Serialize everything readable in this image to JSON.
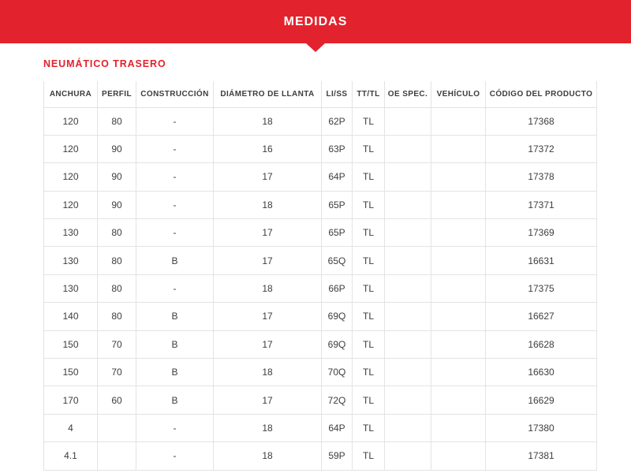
{
  "colors": {
    "accent_red": "#e2222c",
    "table_border": "#e3e3e3",
    "cell_text": "#3d3d3d"
  },
  "banner": {
    "title": "MEDIDAS"
  },
  "section": {
    "title": "NEUMÁTICO TRASERO"
  },
  "table": {
    "columns": [
      "ANCHURA",
      "PERFIL",
      "CONSTRUCCIÓN",
      "DIÁMETRO DE LLANTA",
      "LI/SS",
      "TT/TL",
      "OE SPEC.",
      "VEHÍCULO",
      "CÓDIGO DEL PRODUCTO"
    ],
    "rows": [
      [
        "120",
        "80",
        "-",
        "18",
        "62P",
        "TL",
        "",
        "",
        "17368"
      ],
      [
        "120",
        "90",
        "-",
        "16",
        "63P",
        "TL",
        "",
        "",
        "17372"
      ],
      [
        "120",
        "90",
        "-",
        "17",
        "64P",
        "TL",
        "",
        "",
        "17378"
      ],
      [
        "120",
        "90",
        "-",
        "18",
        "65P",
        "TL",
        "",
        "",
        "17371"
      ],
      [
        "130",
        "80",
        "-",
        "17",
        "65P",
        "TL",
        "",
        "",
        "17369"
      ],
      [
        "130",
        "80",
        "B",
        "17",
        "65Q",
        "TL",
        "",
        "",
        "16631"
      ],
      [
        "130",
        "80",
        "-",
        "18",
        "66P",
        "TL",
        "",
        "",
        "17375"
      ],
      [
        "140",
        "80",
        "B",
        "17",
        "69Q",
        "TL",
        "",
        "",
        "16627"
      ],
      [
        "150",
        "70",
        "B",
        "17",
        "69Q",
        "TL",
        "",
        "",
        "16628"
      ],
      [
        "150",
        "70",
        "B",
        "18",
        "70Q",
        "TL",
        "",
        "",
        "16630"
      ],
      [
        "170",
        "60",
        "B",
        "17",
        "72Q",
        "TL",
        "",
        "",
        "16629"
      ],
      [
        "4",
        "",
        "-",
        "18",
        "64P",
        "TL",
        "",
        "",
        "17380"
      ],
      [
        "4.1",
        "",
        "-",
        "18",
        "59P",
        "TL",
        "",
        "",
        "17381"
      ]
    ]
  }
}
